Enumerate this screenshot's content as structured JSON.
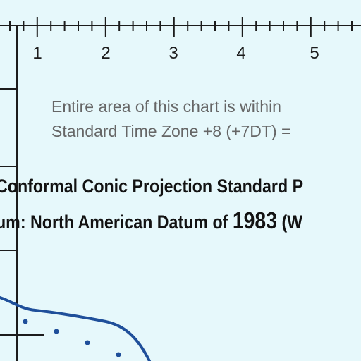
{
  "scale_ticks": {
    "labels": [
      "1",
      "2",
      "3",
      "4",
      "5"
    ]
  },
  "note": {
    "line1": "Entire area of this chart is within",
    "line2": "Standard Time Zone +8 (+7DT) ="
  },
  "projection": {
    "line1": "Conformal Conic Projection Standard P",
    "line2_prefix": "um: North American Datum of ",
    "line2_year": "1983",
    "line2_suffix": " (W"
  },
  "colors": {
    "water": "#e6f8fb",
    "ink": "#121212",
    "note_gray": "#666666",
    "coastline": "#1f4f9a"
  }
}
